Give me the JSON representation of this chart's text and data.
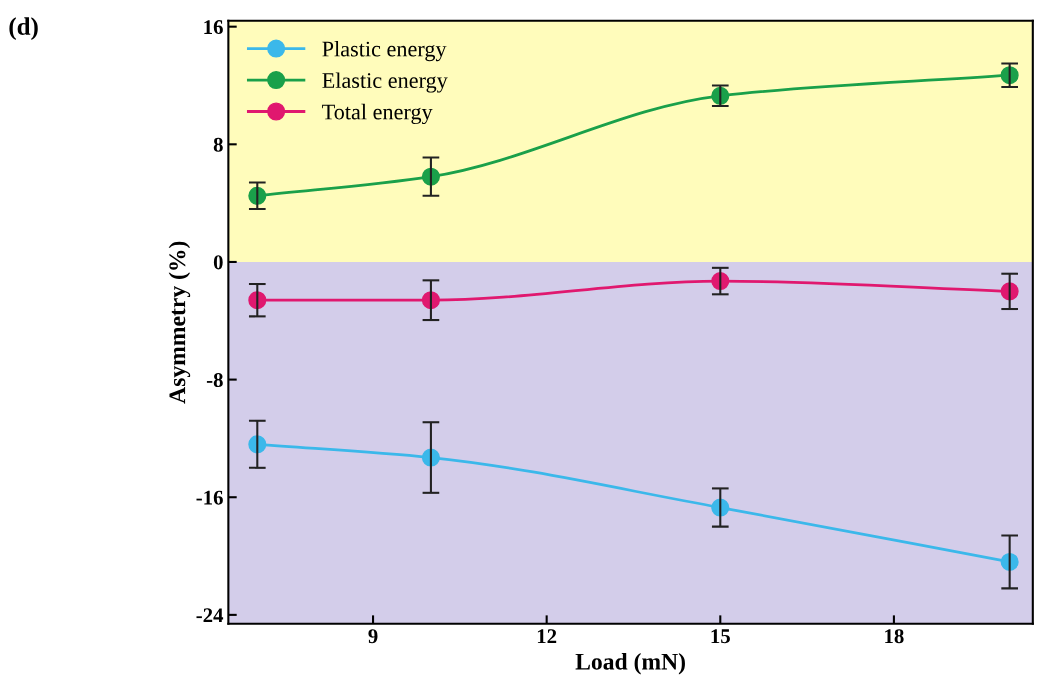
{
  "chart_data": {
    "type": "line",
    "xlabel": "Load (mN)",
    "ylabel": "Asymmetry (%)",
    "x": [
      7,
      10,
      15,
      20
    ],
    "xlim": [
      6.5,
      20.4
    ],
    "xticks": [
      9,
      12,
      15,
      18
    ],
    "ylim": [
      -24.6,
      16.4
    ],
    "yticks": [
      -24,
      -16,
      -8,
      0,
      8,
      16
    ],
    "grid": false,
    "legend": "top left",
    "marker": "circle",
    "line_style": "solid",
    "series": [
      {
        "name": "Plastic energy",
        "color": "#3bb8ea",
        "values": [
          -12.4,
          -13.3,
          -16.7,
          -20.4
        ],
        "errors": [
          1.6,
          2.4,
          1.3,
          1.8
        ]
      },
      {
        "name": "Elastic energy",
        "color": "#1aa04a",
        "values": [
          4.5,
          5.8,
          11.3,
          12.7
        ],
        "errors": [
          0.9,
          1.3,
          0.7,
          0.8
        ]
      },
      {
        "name": "Total energy",
        "color": "#e0186f",
        "values": [
          -2.6,
          -2.6,
          -1.3,
          -2.0
        ],
        "errors": [
          1.1,
          1.35,
          0.9,
          1.2
        ]
      }
    ],
    "bands": [
      {
        "axis": "y",
        "from": 0,
        "to": 16.4,
        "color": "#fffcbb"
      },
      {
        "axis": "y",
        "from": -24.6,
        "to": 0,
        "color": "#d3cdea"
      }
    ],
    "annotations": [
      "(d)"
    ]
  }
}
